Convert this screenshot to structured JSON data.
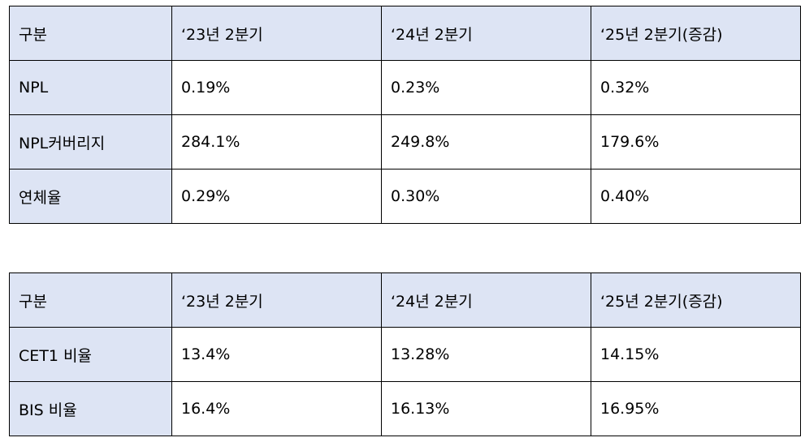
{
  "asset_quality_table": {
    "headers": [
      "구분",
      "‘23년 2분기",
      "‘24년 2분기",
      "‘25년 2분기(증감)"
    ],
    "rows": [
      {
        "label": "NPL",
        "values": [
          "0.19%",
          "0.23%",
          "0.32%"
        ]
      },
      {
        "label": "NPL커버리지",
        "values": [
          "284.1%",
          "249.8%",
          "179.6%"
        ]
      },
      {
        "label": "연체율",
        "values": [
          "0.29%",
          "0.30%",
          "0.40%"
        ]
      }
    ]
  },
  "capital_table": {
    "headers": [
      "구분",
      "‘23년 2분기",
      "‘24년 2분기",
      "‘25년 2분기(증감)"
    ],
    "rows": [
      {
        "label": "CET1 비율",
        "values": [
          "13.4%",
          "13.28%",
          "14.15%"
        ]
      },
      {
        "label": "BIS 비율",
        "values": [
          "16.4%",
          "16.13%",
          "16.95%"
        ]
      }
    ]
  },
  "colors": {
    "header_background": "#dde4f4",
    "border": "#000000",
    "text": "#000000"
  }
}
